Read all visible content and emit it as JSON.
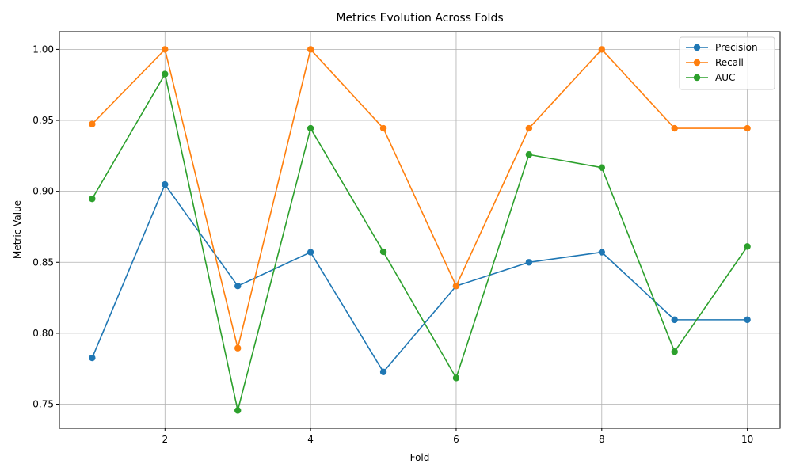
{
  "chart_data": {
    "type": "line",
    "title": "Metrics Evolution Across Folds",
    "xlabel": "Fold",
    "ylabel": "Metric Value",
    "x": [
      1,
      2,
      3,
      4,
      5,
      6,
      7,
      8,
      9,
      10
    ],
    "xlim": [
      0.55,
      10.45
    ],
    "ylim": [
      0.733,
      1.0125
    ],
    "xticks": [
      2,
      4,
      6,
      8,
      10
    ],
    "yticks": [
      0.75,
      0.8,
      0.85,
      0.9,
      0.95,
      1.0
    ],
    "ytick_labels": [
      "0.75",
      "0.80",
      "0.85",
      "0.90",
      "0.95",
      "1.00"
    ],
    "grid": true,
    "legend_position": "top-right",
    "series": [
      {
        "name": "Precision",
        "color": "#1f77b4",
        "values": [
          0.7826,
          0.9048,
          0.8333,
          0.8571,
          0.7727,
          0.8333,
          0.85,
          0.8571,
          0.8095,
          0.8095
        ]
      },
      {
        "name": "Recall",
        "color": "#ff7f0e",
        "values": [
          0.9474,
          1.0,
          0.7895,
          1.0,
          0.9444,
          0.8333,
          0.9444,
          1.0,
          0.9444,
          0.9444
        ]
      },
      {
        "name": "AUC",
        "color": "#2ca02c",
        "values": [
          0.8947,
          0.9826,
          0.7456,
          0.9444,
          0.8574,
          0.7685,
          0.9259,
          0.9167,
          0.787,
          0.8611
        ]
      }
    ]
  }
}
